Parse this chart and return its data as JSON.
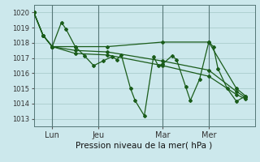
{
  "background_color": "#cce8ec",
  "grid_color": "#aacccc",
  "line_color": "#1a5c1a",
  "title": "Pression niveau de la mer( hPa )",
  "ylabel_ticks": [
    1013,
    1014,
    1015,
    1016,
    1017,
    1018,
    1019,
    1020
  ],
  "ylim": [
    1012.5,
    1020.5
  ],
  "x_tick_labels": [
    "Lun",
    "Jeu",
    "Mar",
    "Mer"
  ],
  "x_tick_positions": [
    4,
    14,
    28,
    38
  ],
  "xlim": [
    0,
    48
  ],
  "series": [
    [
      0,
      1020.0,
      2,
      1018.5,
      4,
      1017.75,
      6,
      1019.35,
      7,
      1018.9,
      9,
      1017.75,
      11,
      1017.15,
      13,
      1016.5,
      15,
      1016.8,
      17,
      1017.1,
      18,
      1016.9,
      19,
      1017.2,
      21,
      1015.0,
      22,
      1014.2,
      24,
      1013.2,
      26,
      1017.1,
      27,
      1016.5,
      28,
      1016.6,
      30,
      1017.15,
      31,
      1016.9,
      33,
      1015.1,
      34,
      1014.2,
      36,
      1015.6,
      38,
      1018.05,
      39,
      1017.75,
      40,
      1016.3,
      42,
      1015.0,
      44,
      1014.15,
      46,
      1014.5
    ],
    [
      0,
      1020.0,
      2,
      1018.5,
      4,
      1017.75,
      9,
      1017.75,
      16,
      1017.75,
      28,
      1018.05,
      38,
      1018.05,
      44,
      1015.0,
      46,
      1014.5
    ],
    [
      0,
      1020.0,
      2,
      1018.5,
      4,
      1017.75,
      9,
      1017.5,
      16,
      1017.4,
      28,
      1016.8,
      38,
      1016.2,
      44,
      1014.8,
      46,
      1014.4
    ],
    [
      0,
      1020.0,
      2,
      1018.5,
      4,
      1017.75,
      9,
      1017.3,
      16,
      1017.2,
      28,
      1016.5,
      38,
      1015.8,
      44,
      1014.6,
      46,
      1014.3
    ]
  ]
}
